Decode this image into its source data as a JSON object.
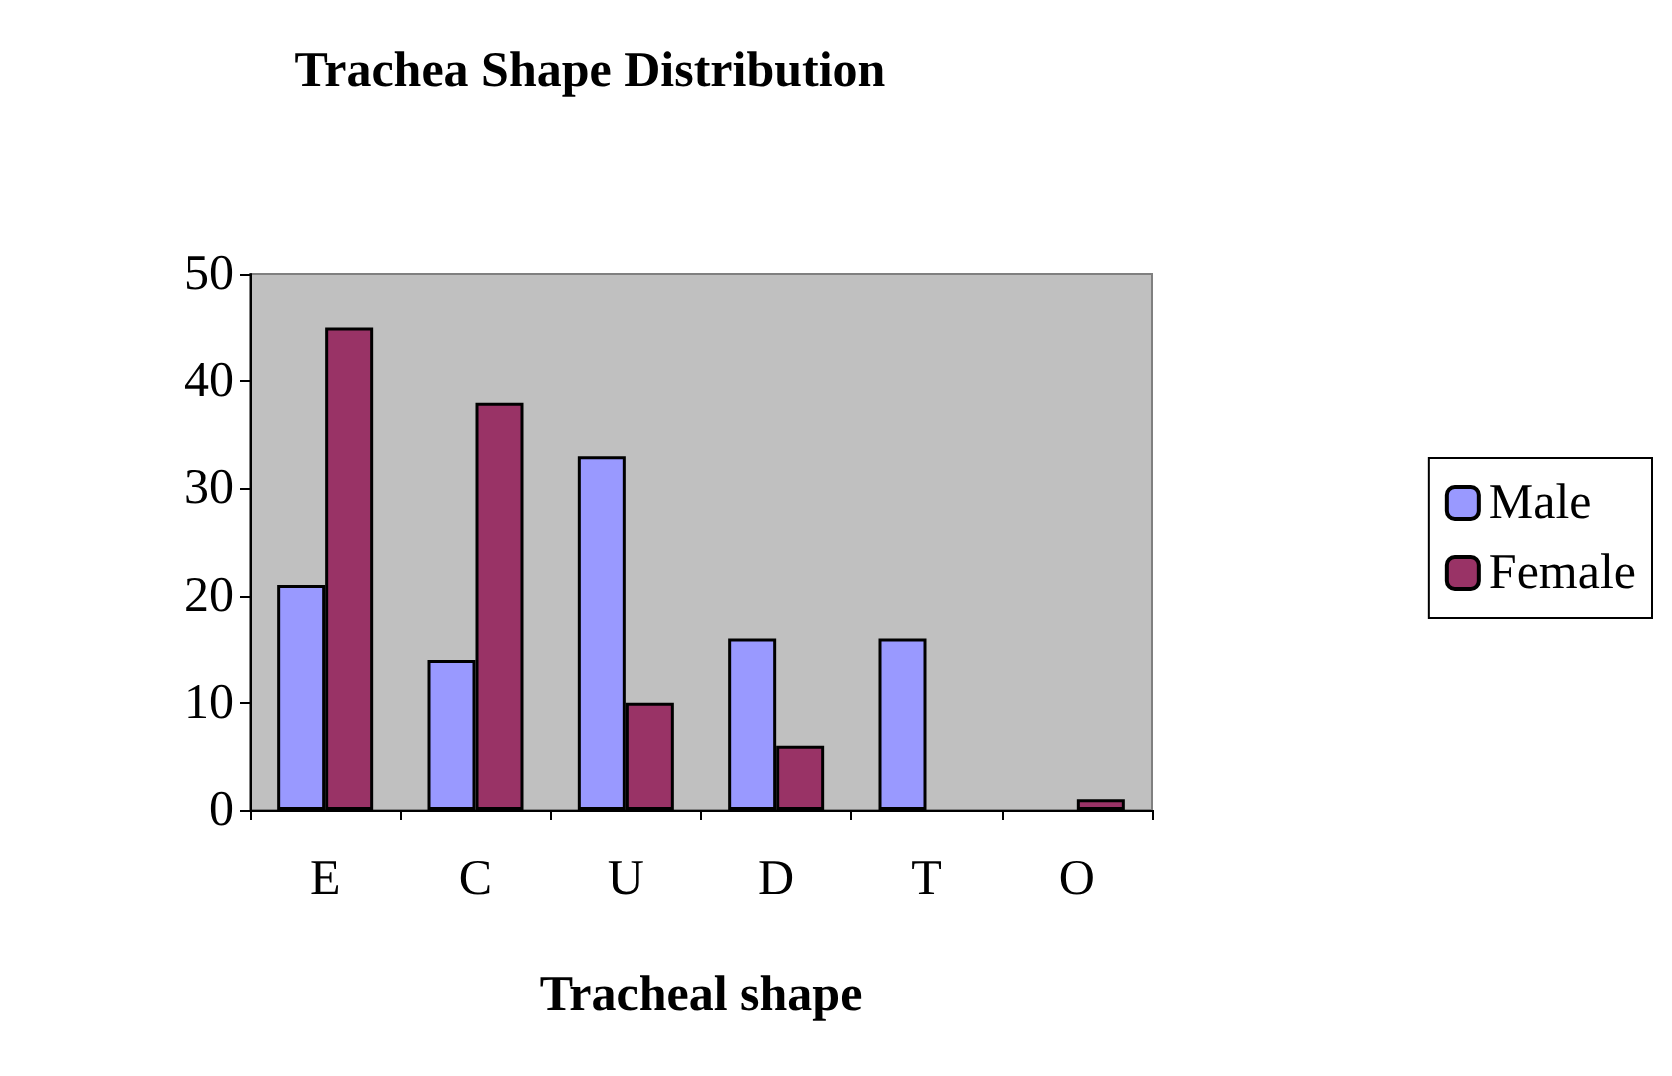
{
  "chart_data": {
    "type": "bar",
    "title": "Trachea Shape Distribution",
    "xlabel": "Tracheal shape",
    "categories": [
      "E",
      "C",
      "U",
      "D",
      "T",
      "O"
    ],
    "series": [
      {
        "name": "Male",
        "color": "#9999ff",
        "values": [
          21,
          14,
          33,
          16,
          16,
          0
        ]
      },
      {
        "name": "Female",
        "color": "#993366",
        "values": [
          45,
          38,
          10,
          6,
          0,
          1
        ]
      }
    ],
    "ylim": [
      0,
      50
    ],
    "yticks": [
      0,
      10,
      20,
      30,
      40,
      50
    ],
    "grid": false,
    "legend": "right"
  }
}
